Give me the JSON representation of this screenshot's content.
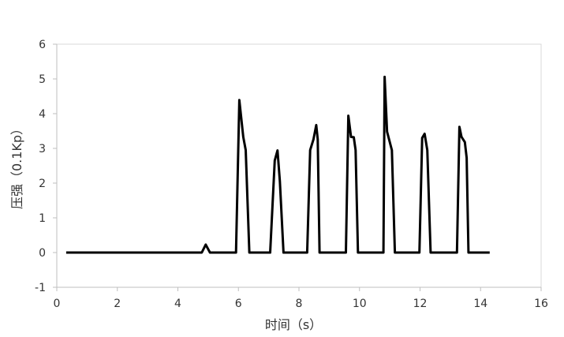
{
  "chart_data": {
    "type": "line",
    "title": "",
    "xlabel": "时间（s）",
    "ylabel": "压强（0.1Kp）",
    "xlim": [
      0,
      16
    ],
    "ylim": [
      -1,
      6
    ],
    "xticks": [
      0,
      2,
      4,
      6,
      8,
      10,
      12,
      14,
      16
    ],
    "yticks": [
      -1,
      0,
      1,
      2,
      3,
      4,
      5,
      6
    ],
    "grid": false,
    "line_color": "#000000",
    "series": [
      {
        "points": [
          [
            0.31,
            0
          ],
          [
            4.79,
            0
          ],
          [
            4.92,
            0.23
          ],
          [
            5.06,
            0
          ],
          [
            5.92,
            0
          ],
          [
            6.03,
            4.39
          ],
          [
            6.16,
            3.33
          ],
          [
            6.24,
            2.95
          ],
          [
            6.36,
            0
          ],
          [
            7.05,
            0
          ],
          [
            7.2,
            2.65
          ],
          [
            7.29,
            2.94
          ],
          [
            7.37,
            2.05
          ],
          [
            7.49,
            0
          ],
          [
            8.27,
            0
          ],
          [
            8.37,
            2.95
          ],
          [
            8.48,
            3.26
          ],
          [
            8.57,
            3.67
          ],
          [
            8.62,
            3.26
          ],
          [
            8.68,
            0
          ],
          [
            9.55,
            0
          ],
          [
            9.63,
            3.94
          ],
          [
            9.72,
            3.33
          ],
          [
            9.81,
            3.32
          ],
          [
            9.87,
            2.95
          ],
          [
            9.95,
            0
          ],
          [
            10.79,
            0
          ],
          [
            10.83,
            5.06
          ],
          [
            10.91,
            3.48
          ],
          [
            11.07,
            2.95
          ],
          [
            11.17,
            0
          ],
          [
            11.98,
            0
          ],
          [
            12.07,
            3.3
          ],
          [
            12.15,
            3.42
          ],
          [
            12.24,
            2.95
          ],
          [
            12.35,
            0
          ],
          [
            13.22,
            0
          ],
          [
            13.3,
            3.62
          ],
          [
            13.37,
            3.33
          ],
          [
            13.48,
            3.18
          ],
          [
            13.54,
            2.73
          ],
          [
            13.6,
            0
          ],
          [
            14.3,
            0
          ]
        ]
      }
    ]
  }
}
